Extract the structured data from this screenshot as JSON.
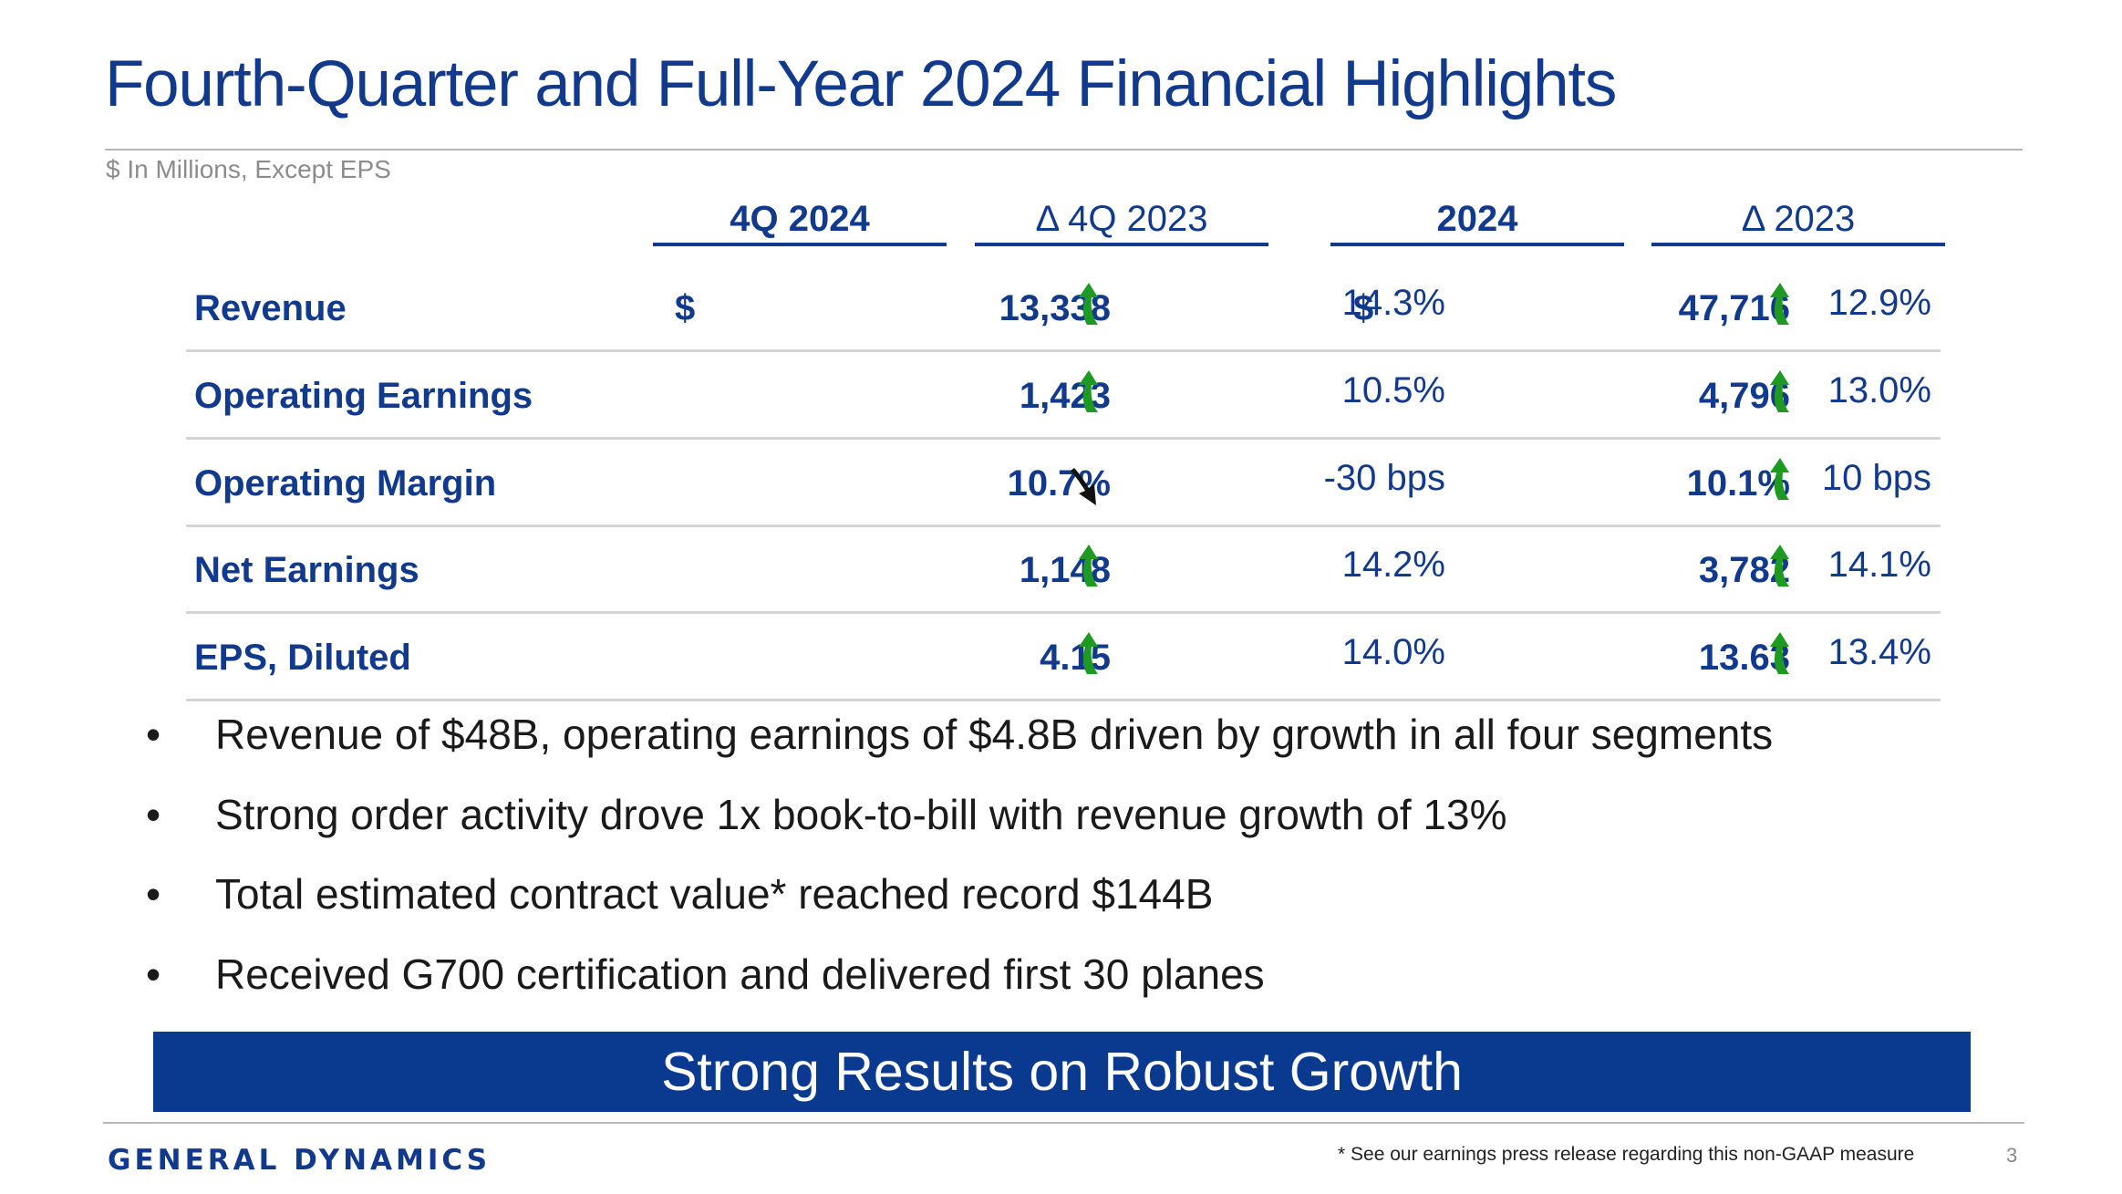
{
  "title": "Fourth-Quarter and Full-Year 2024 Financial Highlights",
  "subtitle": "$ In Millions, Except EPS",
  "columns": {
    "q4_2024": "4Q 2024",
    "delta_q4_2023": "Δ 4Q 2023",
    "fy_2024": "2024",
    "delta_2023": "Δ 2023"
  },
  "rows": [
    {
      "label": "Revenue",
      "currency": "$",
      "q4": "13,338",
      "q4_change": "14.3%",
      "q4_direction": "up",
      "fy": "47,716",
      "fy_change": "12.9%",
      "fy_direction": "up"
    },
    {
      "label": "Operating Earnings",
      "currency": "",
      "q4": "1,423",
      "q4_change": "10.5%",
      "q4_direction": "up",
      "fy": "4,796",
      "fy_change": "13.0%",
      "fy_direction": "up"
    },
    {
      "label": "Operating Margin",
      "currency": "",
      "q4": "10.7%",
      "q4_change": "-30 bps",
      "q4_direction": "down",
      "fy": "10.1%",
      "fy_change": "10 bps",
      "fy_direction": "up"
    },
    {
      "label": "Net Earnings",
      "currency": "",
      "q4": "1,148",
      "q4_change": "14.2%",
      "q4_direction": "up",
      "fy": "3,782",
      "fy_change": "14.1%",
      "fy_direction": "up"
    },
    {
      "label": "EPS, Diluted",
      "currency": "",
      "q4": "4.15",
      "q4_change": "14.0%",
      "q4_direction": "up",
      "fy": "13.63",
      "fy_change": "13.4%",
      "fy_direction": "up"
    }
  ],
  "bullet_char": "•",
  "bullets": [
    "Revenue of $48B, operating earnings of $4.8B driven by growth in all four segments",
    "Strong order activity drove 1x book-to-bill with revenue growth of 13%",
    "Total estimated contract value* reached record $144B",
    "Received G700 certification and delivered first 30 planes"
  ],
  "banner": "Strong Results on Robust Growth",
  "footer": {
    "logo": "GENERAL DYNAMICS",
    "footnote": "* See our earnings press release regarding this non-GAAP measure",
    "page_number": "3"
  },
  "colors": {
    "brand_blue": "#123a8c",
    "banner_blue": "#0a3a8f",
    "up_arrow": "#1e9a22",
    "down_arrow": "#111111"
  },
  "icons": {
    "up": "arrow-up-icon",
    "down": "arrow-down-icon"
  }
}
